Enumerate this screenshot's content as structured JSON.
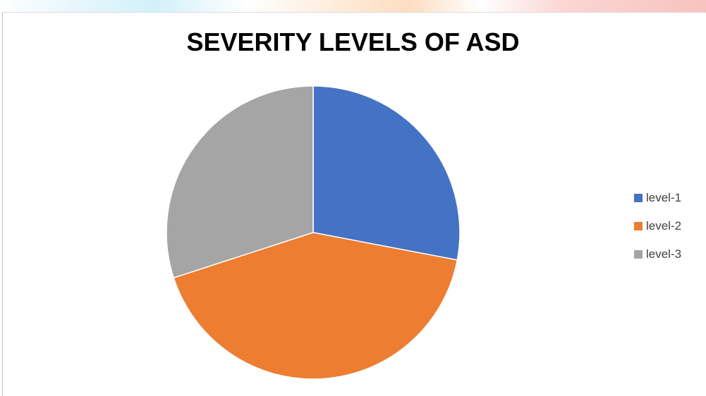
{
  "chart_data": {
    "type": "pie",
    "title": "SEVERITY LEVELS OF ASD",
    "categories": [
      "level-1",
      "level-2",
      "level-3"
    ],
    "values": [
      28,
      42,
      30
    ],
    "colors": [
      "#4472c4",
      "#ed7d31",
      "#a5a5a5"
    ],
    "legend_position": "right",
    "start_angle": "12 o'clock, clockwise"
  }
}
